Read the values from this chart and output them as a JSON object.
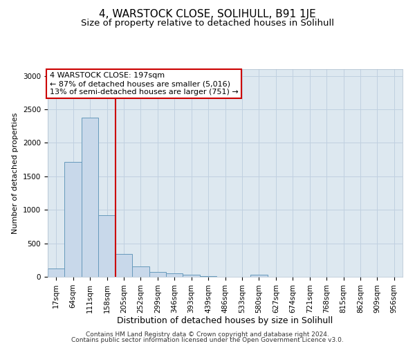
{
  "title": "4, WARSTOCK CLOSE, SOLIHULL, B91 1JE",
  "subtitle": "Size of property relative to detached houses in Solihull",
  "xlabel": "Distribution of detached houses by size in Solihull",
  "ylabel": "Number of detached properties",
  "footer_line1": "Contains HM Land Registry data © Crown copyright and database right 2024.",
  "footer_line2": "Contains public sector information licensed under the Open Government Licence v3.0.",
  "bin_labels": [
    "17sqm",
    "64sqm",
    "111sqm",
    "158sqm",
    "205sqm",
    "252sqm",
    "299sqm",
    "346sqm",
    "393sqm",
    "439sqm",
    "486sqm",
    "533sqm",
    "580sqm",
    "627sqm",
    "674sqm",
    "721sqm",
    "768sqm",
    "815sqm",
    "862sqm",
    "909sqm",
    "956sqm"
  ],
  "bar_values": [
    120,
    1720,
    2380,
    920,
    340,
    150,
    75,
    55,
    30,
    10,
    5,
    5,
    30,
    5,
    0,
    0,
    0,
    0,
    0,
    0,
    0
  ],
  "bar_color": "#c8d8ea",
  "bar_edge_color": "#6699bb",
  "vline_x": 4,
  "vline_color": "#cc0000",
  "annotation_text": "4 WARSTOCK CLOSE: 197sqm\n← 87% of detached houses are smaller (5,016)\n13% of semi-detached houses are larger (751) →",
  "annotation_box_color": "#ffffff",
  "annotation_box_edge": "#cc0000",
  "ylim": [
    0,
    3100
  ],
  "yticks": [
    0,
    500,
    1000,
    1500,
    2000,
    2500,
    3000
  ],
  "grid_color": "#c0d0e0",
  "bg_color": "#dde8f0",
  "title_fontsize": 11,
  "subtitle_fontsize": 9.5,
  "ylabel_fontsize": 8,
  "xlabel_fontsize": 9,
  "tick_fontsize": 7.5,
  "footer_fontsize": 6.5,
  "annot_fontsize": 8
}
